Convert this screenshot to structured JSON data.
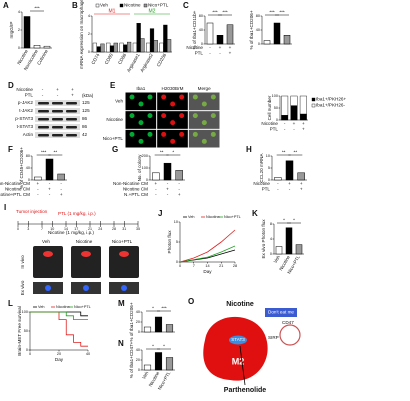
{
  "panels": [
    {
      "label": "A",
      "type": "bar",
      "ylabel": "mIgG/IP",
      "categories": [
        "Nicotine",
        "Nornicotine",
        "Cotinine"
      ],
      "values": [
        3.5,
        0.3,
        0.2
      ],
      "colors": [
        "#000000",
        "#ffffff",
        "#ffffff"
      ],
      "ylim": [
        0,
        4
      ],
      "yticks": [
        0,
        2,
        4
      ],
      "stars": [
        "***"
      ]
    },
    {
      "label": "B",
      "type": "grouped",
      "ylabel": "mRNA expression on macrophage",
      "categories": [
        "CD74",
        "CD80",
        "CD86",
        "Arginase1",
        "Arginase2",
        "CD206"
      ],
      "series": [
        {
          "name": "Veh",
          "color": "#ffffff",
          "values": [
            1,
            1,
            1,
            1,
            1,
            1
          ]
        },
        {
          "name": "Nicotine",
          "color": "#000000",
          "values": [
            0.6,
            0.7,
            0.8,
            3.2,
            2.6,
            3.0
          ]
        },
        {
          "name": "Nico+PTL",
          "color": "#999999",
          "values": [
            0.9,
            1,
            1.1,
            1.5,
            1.3,
            1.4
          ]
        }
      ],
      "ylim": [
        0,
        4
      ],
      "yticks": [
        0,
        2,
        4
      ],
      "groups": [
        {
          "text": "M1",
          "color": "#e02020"
        },
        {
          "text": "M2",
          "color": "#20a020"
        }
      ]
    },
    {
      "label": "C",
      "type": "bar",
      "ylabel": "% of Iba1+CD11b+",
      "values": [
        60,
        25,
        55
      ],
      "colors": [
        "#ffffff",
        "#000000",
        "#999999"
      ],
      "ylim": [
        0,
        80
      ],
      "yticks": [
        0,
        40,
        80
      ],
      "stars": [
        "***",
        "***"
      ],
      "rows": [
        {
          "name": "Nicotine",
          "signs": [
            "-",
            "+",
            "+"
          ]
        },
        {
          "name": "PTL",
          "signs": [
            "-",
            "-",
            "+"
          ]
        }
      ]
    },
    {
      "type": "bar",
      "ylabel": "% of Iba1+CD206+",
      "values": [
        10,
        60,
        25
      ],
      "colors": [
        "#ffffff",
        "#000000",
        "#999999"
      ],
      "ylim": [
        0,
        80
      ],
      "yticks": [
        0,
        40,
        80
      ],
      "stars": [
        "***",
        "***"
      ]
    },
    {
      "label": "D",
      "type": "blot",
      "rows": [
        {
          "name": "Nicotine",
          "signs": [
            "-",
            "+",
            "+"
          ]
        },
        {
          "name": "PTL",
          "signs": [
            "-",
            "-",
            "+"
          ]
        }
      ],
      "bands": [
        "p-JAK2",
        "t-JAK2",
        "p-STAT3",
        "t-STAT3",
        "Actin"
      ],
      "unit": "(kDa)",
      "sizes": [
        "125",
        "125",
        "86",
        "86",
        "42"
      ]
    },
    {
      "label": "E",
      "type": "images",
      "columns": [
        "Iba1",
        "H2030BrM",
        "Merge"
      ],
      "rows": [
        "Veh",
        "Nicotine",
        "Nico+PTL"
      ]
    },
    {
      "type": "stacked",
      "ylabel": "Cell number",
      "series": [
        {
          "name": "Iba1+/PKH26+",
          "color": "#000000",
          "values": [
            20,
            60,
            25
          ]
        },
        {
          "name": "Iba1+/PKH26-",
          "color": "#ffffff",
          "values": [
            80,
            40,
            75
          ]
        }
      ],
      "ylim": [
        0,
        100
      ],
      "yticks": [
        0,
        50,
        100
      ],
      "rows": [
        {
          "name": "Nicotine",
          "signs": [
            "-",
            "+",
            "+"
          ]
        },
        {
          "name": "PTL",
          "signs": [
            "-",
            "-",
            "+"
          ]
        }
      ]
    },
    {
      "label": "F",
      "type": "bar",
      "ylabel": "% of CD45+CD206+",
      "values": [
        10,
        70,
        20
      ],
      "colors": [
        "#ffffff",
        "#000000",
        "#999999"
      ],
      "ylim": [
        0,
        80
      ],
      "yticks": [
        0,
        40,
        80
      ],
      "stars": [
        "***",
        "**"
      ],
      "rows": [
        {
          "name": "Non-Nicotine CM",
          "signs": [
            "+",
            "-",
            "-"
          ]
        },
        {
          "name": "Nicotine CM",
          "signs": [
            "-",
            "+",
            "-"
          ]
        },
        {
          "name": "Nicotine+PTL CM",
          "signs": [
            "-",
            "-",
            "+"
          ]
        }
      ]
    },
    {
      "label": "G",
      "type": "bar",
      "ylabel": "No. of colony",
      "values": [
        60,
        140,
        80
      ],
      "colors": [
        "#ffffff",
        "#000000",
        "#999999"
      ],
      "ylim": [
        0,
        200
      ],
      "yticks": [
        0,
        100,
        200
      ],
      "stars": [
        "**",
        "*"
      ],
      "rows": [
        {
          "name": "Non-Nicotine CM",
          "signs": [
            "+",
            "-",
            "-"
          ]
        },
        {
          "name": "Nicotine CM",
          "signs": [
            "-",
            "+",
            "-"
          ]
        },
        {
          "name": "N.+PTL CM",
          "signs": [
            "-",
            "-",
            "+"
          ]
        }
      ]
    },
    {
      "label": "H",
      "type": "bar",
      "ylabel": "CCL20 mRNA",
      "values": [
        1,
        8,
        3
      ],
      "colors": [
        "#ffffff",
        "#000000",
        "#999999"
      ],
      "ylim": [
        0,
        10
      ],
      "yticks": [
        0,
        5,
        10
      ],
      "stars": [
        "**",
        "**"
      ],
      "rows": [
        {
          "name": "Nicotine",
          "signs": [
            "-",
            "+",
            "+"
          ]
        },
        {
          "name": "PTL",
          "signs": [
            "-",
            "-",
            "+"
          ]
        }
      ]
    },
    {
      "label": "I",
      "type": "timeline",
      "events": [
        "Tumor injection",
        "PTL (1 mg/kg, i.p.)",
        "Nicotine (1 mg/kg, i.p.)"
      ],
      "days": [
        0,
        3,
        7,
        10,
        14,
        17,
        21,
        24,
        28,
        31,
        35
      ],
      "xlim": [
        0,
        35
      ],
      "groups": [
        "Veh",
        "Nicotine",
        "Nico+PTL"
      ],
      "side": [
        "In vivo",
        "Ex vivo"
      ]
    },
    {
      "label": "J",
      "type": "line",
      "ylabel": "Photon flux",
      "xlabel": "Day",
      "x": [
        0,
        7,
        14,
        21,
        28
      ],
      "series": [
        {
          "name": "Veh",
          "color": "#000000",
          "values": [
            0,
            0.5,
            1,
            2,
            3
          ]
        },
        {
          "name": "Nicotine",
          "color": "#e02020",
          "values": [
            0,
            1,
            2.5,
            5,
            8
          ]
        },
        {
          "name": "Nico+PTL",
          "color": "#20a020",
          "values": [
            0,
            0.6,
            1.2,
            2.5,
            4
          ]
        }
      ],
      "xlim": [
        0,
        28
      ],
      "xticks": [
        0,
        7,
        14,
        21,
        28
      ],
      "ylim": [
        0,
        10
      ],
      "yticks": [
        0,
        5,
        10
      ]
    },
    {
      "label": "K",
      "type": "bar",
      "ylabel": "Ex vivo Photon flux",
      "categories": [
        "Veh",
        "Nicotine",
        "Nico+PTL"
      ],
      "values": [
        2,
        7,
        2.5
      ],
      "colors": [
        "#ffffff",
        "#000000",
        "#999999"
      ],
      "ylim": [
        0,
        8
      ],
      "yticks": [
        0,
        4,
        8
      ],
      "stars": [
        "*",
        "*"
      ]
    },
    {
      "label": "L",
      "type": "line",
      "step": true,
      "ylabel": "Brain-MET Free survival",
      "xlabel": "Day",
      "x": [
        0,
        20,
        25,
        30,
        35,
        40
      ],
      "series": [
        {
          "name": "Veh",
          "color": "#000000",
          "values": [
            100,
            100,
            100,
            100,
            90,
            90
          ]
        },
        {
          "name": "Nicotine",
          "color": "#e02020",
          "values": [
            100,
            80,
            40,
            20,
            10,
            10
          ]
        },
        {
          "name": "Nico+PTL",
          "color": "#20a020",
          "values": [
            100,
            100,
            90,
            80,
            80,
            80
          ]
        }
      ],
      "xlim": [
        0,
        40
      ],
      "xticks": [
        0,
        20,
        40
      ],
      "ylim": [
        0,
        100
      ],
      "yticks": [
        0,
        50,
        100
      ]
    },
    {
      "label": "M",
      "type": "bar",
      "ylabel": "% of Iba1+CD206+",
      "values": [
        10,
        30,
        15
      ],
      "colors": [
        "#ffffff",
        "#000000",
        "#999999"
      ],
      "ylim": [
        0,
        40
      ],
      "yticks": [
        0,
        20,
        40
      ],
      "stars": [
        "*",
        "***"
      ]
    },
    {
      "label": "N",
      "type": "bar",
      "ylabel": "% of Iba1+CD47+",
      "categories": [
        "Veh",
        "Nicotine",
        "Nico+PTL"
      ],
      "values": [
        10,
        35,
        25
      ],
      "colors": [
        "#ffffff",
        "#000000",
        "#999999"
      ],
      "ylim": [
        0,
        40
      ],
      "yticks": [
        0,
        20,
        40
      ],
      "stars": [
        "*",
        "*"
      ]
    },
    {
      "label": "O",
      "type": "diagram",
      "drug": "Nicotine",
      "signal": "Don't eat me",
      "cd47": "CD47",
      "sirp": "SIRP",
      "stat3": "STAT3",
      "m2": "M2",
      "ptl": "Parthenolide"
    }
  ]
}
